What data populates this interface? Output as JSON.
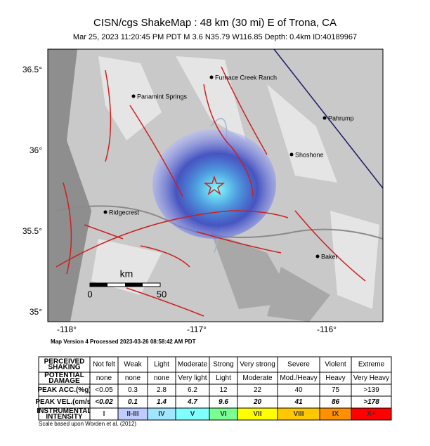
{
  "header": {
    "title": "CISN/cgs ShakeMap : 48 km (30 mi) E of Trona, CA",
    "subtitle": "Mar 25, 2023 11:20:45 PM PDT   M 3.6   N35.79 W116.85   Depth: 0.4km   ID:40189967"
  },
  "map": {
    "lat_labels": [
      "36.5°",
      "36°",
      "35.5°",
      "35°"
    ],
    "lon_labels": [
      "-118°",
      "-117°",
      "-116°"
    ],
    "places": [
      "Furnace Creek Ranch",
      "Panamint Springs",
      "Pahrump",
      "Shoshone",
      "Ridgecrest",
      "Baker"
    ],
    "scale": {
      "unit": "km",
      "start": "0",
      "end": "50"
    }
  },
  "processed": "Map Version 4 Processed 2023-03-26 08:58:42 AM PDT",
  "table": {
    "rows": [
      {
        "label": [
          "PERCEIVED",
          "SHAKING"
        ],
        "cells": [
          "Not felt",
          "Weak",
          "Light",
          "Moderate",
          "Strong",
          "Very strong",
          "Severe",
          "Violent",
          "Extreme"
        ]
      },
      {
        "label": [
          "POTENTIAL",
          "DAMAGE"
        ],
        "cells": [
          "none",
          "none",
          "none",
          "Very light",
          "Light",
          "Moderate",
          "Mod./Heavy",
          "Heavy",
          "Very Heavy"
        ]
      },
      {
        "label": [
          "PEAK ACC.(%g)"
        ],
        "cells": [
          "<0.05",
          "0.3",
          "2.8",
          "6.2",
          "12",
          "22",
          "40",
          "75",
          ">139"
        ]
      },
      {
        "label": [
          "PEAK VEL.(cm/s)"
        ],
        "cells": [
          "<0.02",
          "0.1",
          "1.4",
          "4.7",
          "9.6",
          "20",
          "41",
          "86",
          ">178"
        ]
      },
      {
        "label": [
          "INSTRUMENTAL",
          "INTENSITY"
        ],
        "cells": [
          "I",
          "II-III",
          "IV",
          "V",
          "VI",
          "VII",
          "VIII",
          "IX",
          "X+"
        ]
      }
    ],
    "intensity_colors": [
      "#ffffff",
      "#bfccff",
      "#a0e6ff",
      "#80ffff",
      "#7aff93",
      "#ffff00",
      "#ffc800",
      "#ff9100",
      "#ff0000"
    ]
  },
  "note": "Scale based upon Worden et al. (2012)"
}
